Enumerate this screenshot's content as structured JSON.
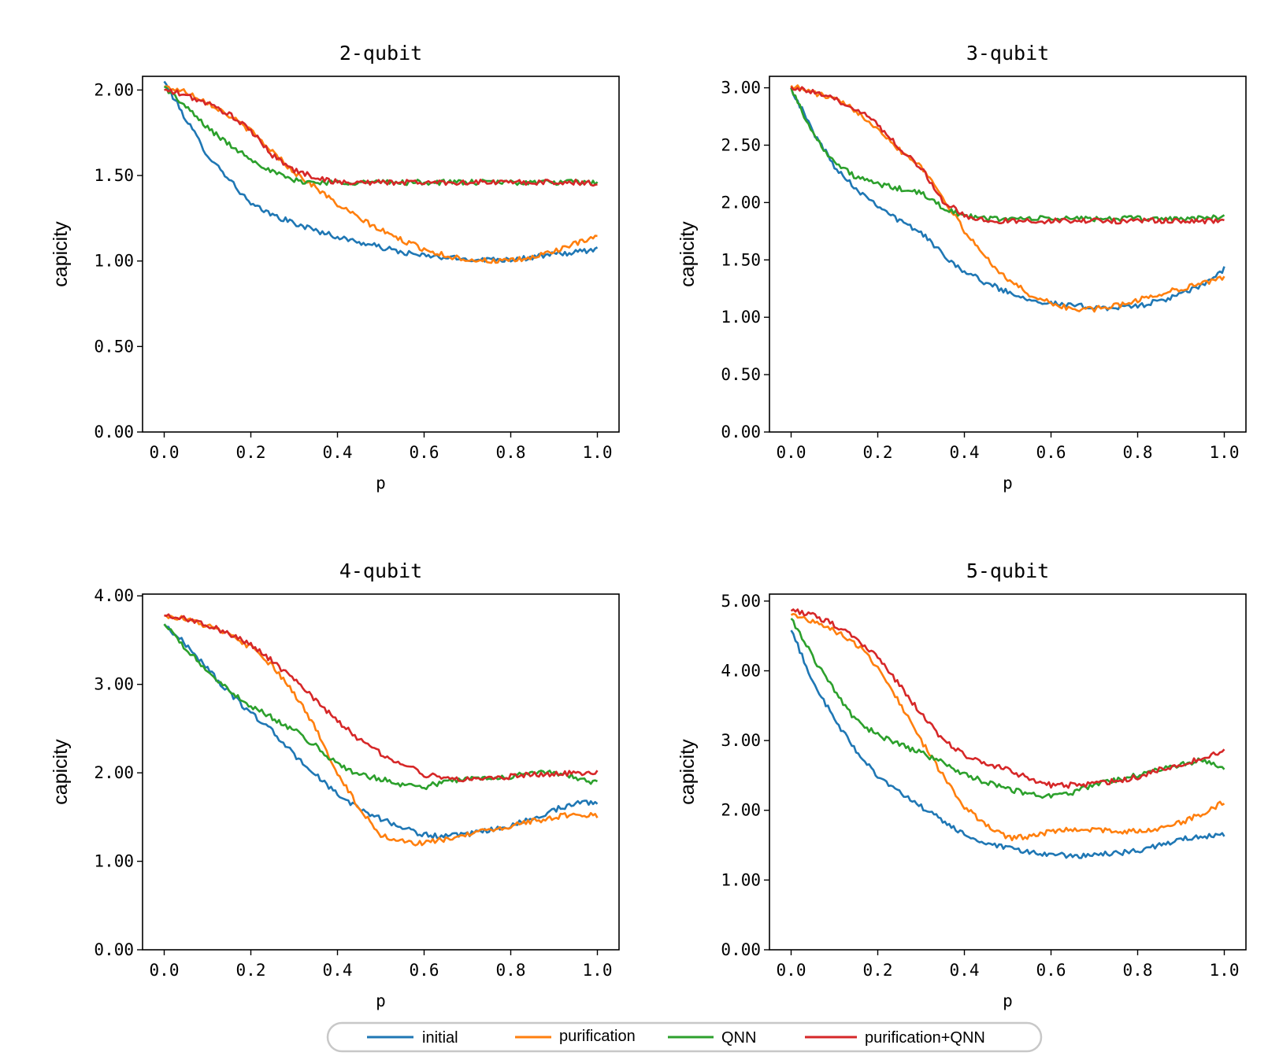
{
  "chart_data": [
    {
      "type": "line",
      "title": "2-qubit",
      "xlabel": "p",
      "ylabel": "capicity",
      "xlim": [
        -0.05,
        1.05
      ],
      "ylim": [
        0,
        2.08
      ],
      "x_ticks": [
        "0.0",
        "0.2",
        "0.4",
        "0.6",
        "0.8",
        "1.0"
      ],
      "y_ticks": [
        "0.00",
        "0.50",
        "1.00",
        "1.50",
        "2.00"
      ],
      "x": [
        0.0,
        0.05,
        0.1,
        0.15,
        0.2,
        0.25,
        0.3,
        0.35,
        0.4,
        0.45,
        0.5,
        0.55,
        0.6,
        0.65,
        0.7,
        0.75,
        0.8,
        0.85,
        0.9,
        0.95,
        1.0
      ],
      "series": [
        {
          "name": "initial",
          "values": [
            2.05,
            1.83,
            1.62,
            1.48,
            1.33,
            1.27,
            1.22,
            1.18,
            1.14,
            1.11,
            1.08,
            1.05,
            1.03,
            1.02,
            1.01,
            1.01,
            1.01,
            1.02,
            1.04,
            1.05,
            1.07
          ]
        },
        {
          "name": "purification",
          "values": [
            2.02,
            1.99,
            1.93,
            1.85,
            1.76,
            1.64,
            1.52,
            1.43,
            1.33,
            1.25,
            1.18,
            1.12,
            1.07,
            1.03,
            1.01,
            1.0,
            1.0,
            1.02,
            1.06,
            1.1,
            1.14
          ]
        },
        {
          "name": "QNN",
          "values": [
            2.02,
            1.9,
            1.78,
            1.68,
            1.6,
            1.52,
            1.47,
            1.46,
            1.46,
            1.46,
            1.46,
            1.46,
            1.46,
            1.46,
            1.46,
            1.46,
            1.46,
            1.46,
            1.46,
            1.46,
            1.46
          ]
        },
        {
          "name": "purification+QNN",
          "values": [
            2.0,
            1.97,
            1.92,
            1.86,
            1.76,
            1.62,
            1.53,
            1.49,
            1.46,
            1.46,
            1.46,
            1.46,
            1.46,
            1.46,
            1.46,
            1.46,
            1.46,
            1.46,
            1.46,
            1.46,
            1.45
          ]
        }
      ]
    },
    {
      "type": "line",
      "title": "3-qubit",
      "xlabel": "p",
      "ylabel": "capicity",
      "xlim": [
        -0.05,
        1.05
      ],
      "ylim": [
        0,
        3.1
      ],
      "x_ticks": [
        "0.0",
        "0.2",
        "0.4",
        "0.6",
        "0.8",
        "1.0"
      ],
      "y_ticks": [
        "0.00",
        "0.50",
        "1.00",
        "1.50",
        "2.00",
        "2.50",
        "3.00"
      ],
      "x": [
        0.0,
        0.05,
        0.1,
        0.15,
        0.2,
        0.25,
        0.3,
        0.35,
        0.4,
        0.45,
        0.5,
        0.55,
        0.6,
        0.65,
        0.7,
        0.75,
        0.8,
        0.85,
        0.9,
        0.95,
        1.0
      ],
      "series": [
        {
          "name": "initial",
          "values": [
            3.0,
            2.62,
            2.32,
            2.12,
            1.98,
            1.84,
            1.74,
            1.55,
            1.4,
            1.3,
            1.22,
            1.16,
            1.12,
            1.1,
            1.09,
            1.08,
            1.1,
            1.14,
            1.2,
            1.28,
            1.42
          ]
        },
        {
          "name": "purification",
          "values": [
            3.02,
            2.96,
            2.9,
            2.8,
            2.65,
            2.46,
            2.32,
            2.05,
            1.75,
            1.52,
            1.33,
            1.2,
            1.12,
            1.07,
            1.07,
            1.1,
            1.15,
            1.2,
            1.25,
            1.3,
            1.34
          ]
        },
        {
          "name": "QNN",
          "values": [
            3.0,
            2.6,
            2.35,
            2.22,
            2.16,
            2.12,
            2.08,
            1.96,
            1.88,
            1.86,
            1.86,
            1.86,
            1.86,
            1.86,
            1.86,
            1.86,
            1.86,
            1.86,
            1.86,
            1.86,
            1.88
          ]
        },
        {
          "name": "purification+QNN",
          "values": [
            3.01,
            2.96,
            2.9,
            2.82,
            2.68,
            2.48,
            2.3,
            2.02,
            1.88,
            1.84,
            1.84,
            1.84,
            1.84,
            1.84,
            1.84,
            1.84,
            1.84,
            1.84,
            1.84,
            1.84,
            1.84
          ]
        }
      ]
    },
    {
      "type": "line",
      "title": "4-qubit",
      "xlabel": "p",
      "ylabel": "capicity",
      "xlim": [
        -0.05,
        1.05
      ],
      "ylim": [
        0,
        4.02
      ],
      "x_ticks": [
        "0.0",
        "0.2",
        "0.4",
        "0.6",
        "0.8",
        "1.0"
      ],
      "y_ticks": [
        "0.00",
        "1.00",
        "2.00",
        "3.00",
        "4.00"
      ],
      "x": [
        0.0,
        0.05,
        0.1,
        0.15,
        0.2,
        0.25,
        0.3,
        0.35,
        0.4,
        0.45,
        0.5,
        0.55,
        0.6,
        0.65,
        0.7,
        0.75,
        0.8,
        0.85,
        0.9,
        0.95,
        1.0
      ],
      "series": [
        {
          "name": "initial",
          "values": [
            3.68,
            3.45,
            3.18,
            2.9,
            2.68,
            2.47,
            2.2,
            1.98,
            1.75,
            1.6,
            1.48,
            1.38,
            1.3,
            1.28,
            1.3,
            1.35,
            1.4,
            1.48,
            1.58,
            1.66,
            1.67
          ]
        },
        {
          "name": "purification",
          "values": [
            3.78,
            3.74,
            3.66,
            3.56,
            3.42,
            3.2,
            2.9,
            2.5,
            2.0,
            1.6,
            1.3,
            1.22,
            1.2,
            1.25,
            1.3,
            1.35,
            1.4,
            1.45,
            1.5,
            1.53,
            1.52
          ]
        },
        {
          "name": "QNN",
          "values": [
            3.68,
            3.4,
            3.15,
            2.92,
            2.76,
            2.62,
            2.48,
            2.3,
            2.1,
            1.98,
            1.93,
            1.87,
            1.84,
            1.9,
            1.93,
            1.95,
            1.96,
            2.0,
            2.0,
            1.95,
            1.88
          ]
        },
        {
          "name": "purification+QNN",
          "values": [
            3.78,
            3.74,
            3.67,
            3.57,
            3.45,
            3.26,
            3.05,
            2.82,
            2.58,
            2.38,
            2.22,
            2.1,
            1.98,
            1.94,
            1.93,
            1.94,
            1.96,
            1.98,
            1.99,
            2.0,
            2.01
          ]
        }
      ]
    },
    {
      "type": "line",
      "title": "5-qubit",
      "xlabel": "p",
      "ylabel": "capicity",
      "xlim": [
        -0.05,
        1.05
      ],
      "ylim": [
        0,
        5.1
      ],
      "x_ticks": [
        "0.0",
        "0.2",
        "0.4",
        "0.6",
        "0.8",
        "1.0"
      ],
      "y_ticks": [
        "0.00",
        "1.00",
        "2.00",
        "3.00",
        "4.00",
        "5.00"
      ],
      "x": [
        0.0,
        0.05,
        0.1,
        0.15,
        0.2,
        0.25,
        0.3,
        0.35,
        0.4,
        0.45,
        0.5,
        0.55,
        0.6,
        0.65,
        0.7,
        0.75,
        0.8,
        0.85,
        0.9,
        0.95,
        1.0
      ],
      "series": [
        {
          "name": "initial",
          "values": [
            4.58,
            3.85,
            3.3,
            2.85,
            2.5,
            2.25,
            2.05,
            1.85,
            1.65,
            1.52,
            1.45,
            1.4,
            1.36,
            1.35,
            1.36,
            1.38,
            1.42,
            1.5,
            1.58,
            1.63,
            1.64
          ]
        },
        {
          "name": "purification",
          "values": [
            4.8,
            4.72,
            4.58,
            4.38,
            4.06,
            3.55,
            3.0,
            2.5,
            2.05,
            1.78,
            1.6,
            1.62,
            1.7,
            1.73,
            1.72,
            1.7,
            1.7,
            1.74,
            1.82,
            1.96,
            2.12
          ]
        },
        {
          "name": "QNN",
          "values": [
            4.75,
            4.2,
            3.72,
            3.28,
            3.08,
            2.95,
            2.82,
            2.68,
            2.52,
            2.4,
            2.3,
            2.24,
            2.2,
            2.26,
            2.36,
            2.44,
            2.5,
            2.58,
            2.66,
            2.72,
            2.62
          ]
        },
        {
          "name": "purification+QNN",
          "values": [
            4.86,
            4.8,
            4.66,
            4.45,
            4.2,
            3.8,
            3.38,
            3.02,
            2.8,
            2.66,
            2.58,
            2.45,
            2.36,
            2.36,
            2.38,
            2.42,
            2.48,
            2.58,
            2.66,
            2.76,
            2.84
          ]
        }
      ]
    }
  ],
  "legend": {
    "placement": "bottom-center",
    "entries": [
      "initial",
      "purification",
      "QNN",
      "purification+QNN"
    ]
  },
  "colors": {
    "initial": "#1f77b4",
    "purification": "#ff7f0e",
    "QNN": "#2ca02c",
    "purification+QNN": "#d62728"
  }
}
